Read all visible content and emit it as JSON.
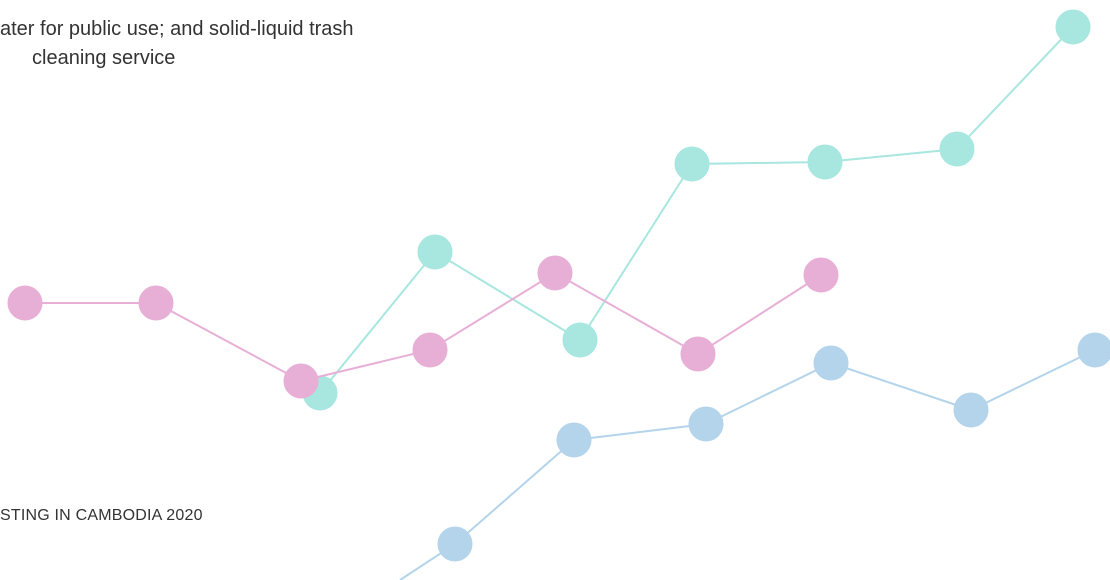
{
  "intro": {
    "line1": "ater for public use; and solid-liquid trash",
    "line2": "cleaning service"
  },
  "footer": {
    "caption": "STING IN CAMBODIA 2020"
  }
}
